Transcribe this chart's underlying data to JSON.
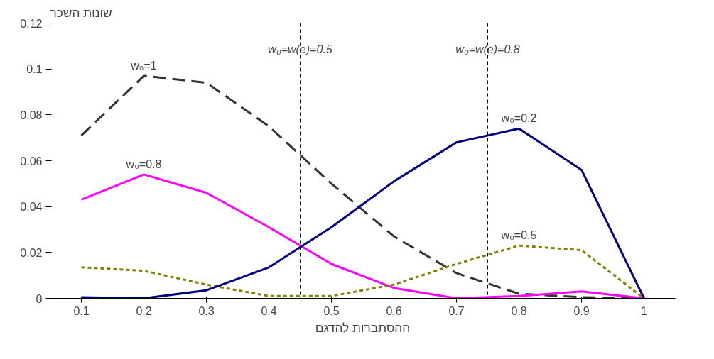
{
  "chart_data": {
    "type": "line",
    "xlabel": "ההסתברות להדגם",
    "ylabel": "שונות השכר",
    "x": [
      0.1,
      0.2,
      0.3,
      0.4,
      0.5,
      0.6,
      0.7,
      0.8,
      0.9,
      1
    ],
    "series": [
      {
        "name": "w₀=1",
        "color": "#333333",
        "line_style": "dashed",
        "values": [
          0.071,
          0.097,
          0.094,
          0.075,
          0.05,
          0.027,
          0.011,
          0.002,
          0.0005,
          0
        ]
      },
      {
        "name": "w₀=0.8",
        "color": "#ff00ff",
        "line_style": "solid",
        "values": [
          0.043,
          0.054,
          0.046,
          0.031,
          0.015,
          0.0045,
          0,
          0.001,
          0.003,
          0
        ]
      },
      {
        "name": "w₀=0.5",
        "color": "#808000",
        "line_style": "dotted",
        "values": [
          0.0135,
          0.012,
          0.006,
          0.001,
          0.001,
          0.006,
          0.015,
          0.023,
          0.021,
          0
        ]
      },
      {
        "name": "w₀=0.2",
        "color": "#000080",
        "line_style": "solid",
        "values": [
          0.0005,
          0,
          0.0035,
          0.0135,
          0.031,
          0.051,
          0.068,
          0.074,
          0.056,
          0
        ]
      }
    ],
    "xlim": [
      0.05,
      1.05
    ],
    "xticks": [
      0.1,
      0.2,
      0.3,
      0.4,
      0.5,
      0.6,
      0.7,
      0.8,
      0.9,
      1
    ],
    "ylim": [
      0,
      0.12
    ],
    "yticks": [
      0,
      0.02,
      0.04,
      0.06,
      0.08,
      0.1,
      0.12
    ],
    "ref_lines": [
      {
        "axis": "x",
        "value": 0.45,
        "label": "w₀=w(e)=0.5",
        "color": "#000000",
        "line_style": "dotted"
      },
      {
        "axis": "x",
        "value": 0.75,
        "label": "w₀=w(e)=0.8",
        "color": "#000000",
        "line_style": "dotted"
      }
    ],
    "grid": false,
    "marker": "none"
  }
}
